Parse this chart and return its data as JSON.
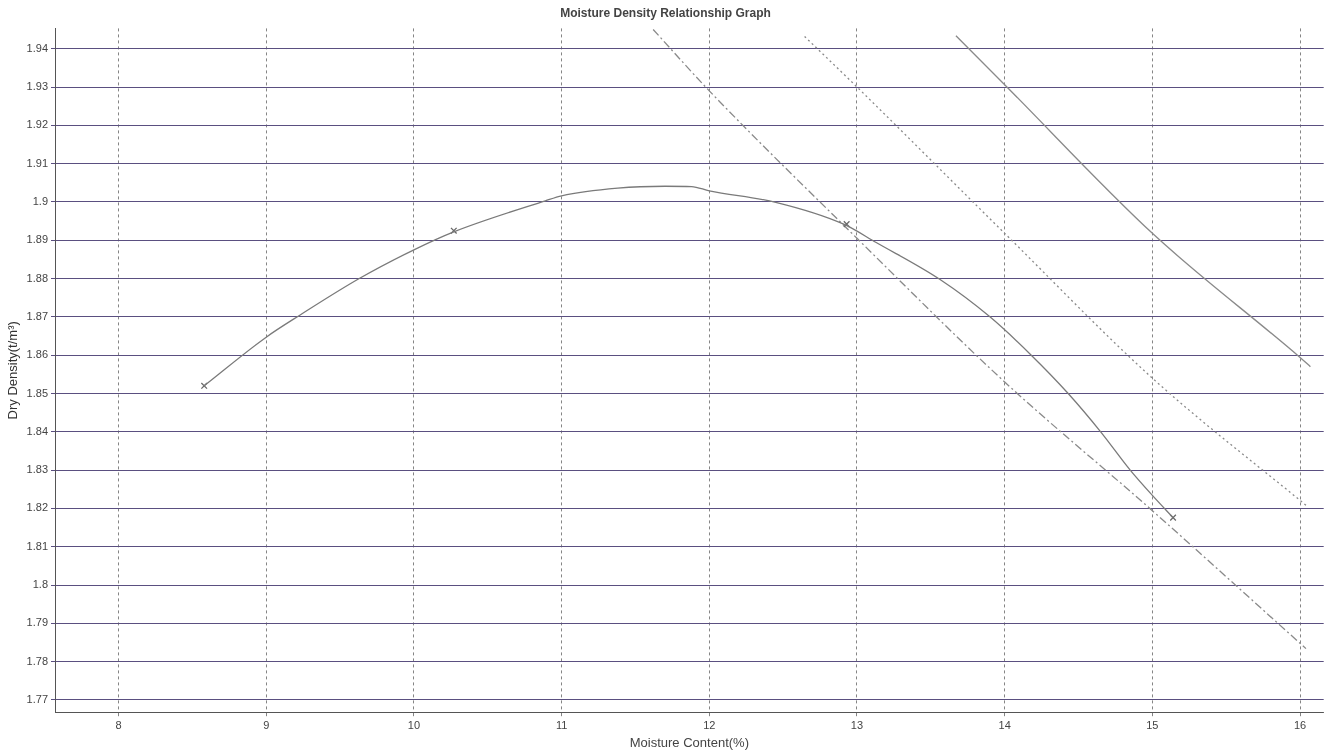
{
  "chart_data": {
    "type": "line",
    "title": "Moisture Density Relationship Graph",
    "xlabel": "Moisture Content(%)",
    "ylabel": "Dry Density(t/m³)",
    "xlim": [
      7.57,
      16.16
    ],
    "xticks": [
      8,
      9,
      10,
      11,
      12,
      13,
      14,
      15,
      16
    ],
    "ylim": [
      1.7668,
      1.9453
    ],
    "yticks": [
      1.77,
      1.78,
      1.79,
      1.8,
      1.81,
      1.82,
      1.83,
      1.84,
      1.85,
      1.86,
      1.87,
      1.88,
      1.89,
      1.9,
      1.91,
      1.92,
      1.93,
      1.94
    ],
    "grid": true,
    "legend": false,
    "series": [
      {
        "color": "#7a7a7a",
        "marker": "none",
        "line_style": "solid",
        "x": [
          8.58,
          9,
          9.23,
          9.63,
          10,
          10.27,
          10.89,
          11,
          11.38,
          11.7,
          11.88,
          12,
          12.45,
          12.91,
          13.13,
          13.56,
          13.9,
          14.18,
          14.43,
          14.65,
          14.85,
          15,
          15.14
        ],
        "values": [
          1.852,
          1.8647,
          1.8705,
          1.88,
          1.8875,
          1.8922,
          1.9003,
          1.9016,
          1.9036,
          1.9041,
          1.904,
          1.9029,
          1.8999,
          1.8942,
          1.8894,
          1.8798,
          1.87,
          1.86,
          1.85,
          1.84,
          1.83,
          1.8234,
          1.8176
        ]
      },
      {
        "type": "scatter",
        "color": "#6a6a6a",
        "marker": "cross",
        "x": [
          8.58,
          10.27,
          12.93,
          15.14
        ],
        "values": [
          1.852,
          1.8925,
          1.8942,
          1.8176
        ]
      },
      {
        "color": "#8a8a8a",
        "marker": "none",
        "line_style": "dashed",
        "x": [
          11.62,
          12,
          13,
          14,
          15,
          16.04
        ],
        "values": [
          1.945,
          1.929,
          1.8905,
          1.853,
          1.8194,
          1.7834
        ]
      },
      {
        "color": "#8a8a8a",
        "marker": "none",
        "line_style": "dotted",
        "x": [
          12.645,
          13,
          14,
          15,
          16.05
        ],
        "values": [
          1.9432,
          1.93,
          1.8918,
          1.854,
          1.8205
        ]
      },
      {
        "color": "#8a8a8a",
        "marker": "none",
        "line_style": "solid",
        "x": [
          13.67,
          14,
          15,
          16,
          16.07
        ],
        "values": [
          1.9434,
          1.9306,
          1.8918,
          1.8594,
          1.857
        ]
      }
    ]
  }
}
